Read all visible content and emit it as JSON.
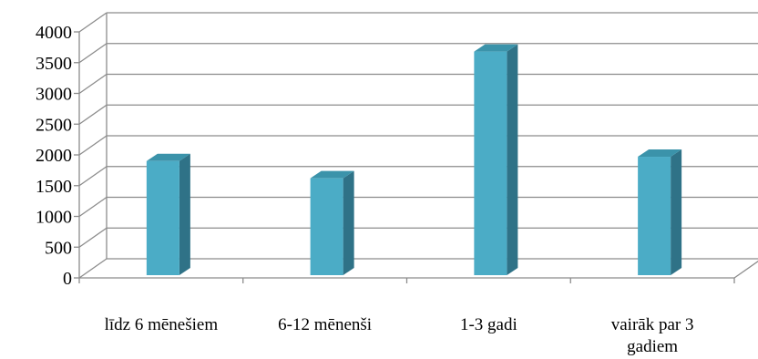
{
  "chart_data": {
    "type": "bar",
    "style": "3d-column",
    "title": "",
    "xlabel": "",
    "ylabel": "",
    "categories": [
      [
        "līdz 6 mēnešiem"
      ],
      [
        "6-12 mēnenši"
      ],
      [
        "1-3 gadi"
      ],
      [
        "vairāk par 3",
        "gadiem"
      ]
    ],
    "values": [
      1900,
      1620,
      3680,
      1970
    ],
    "ylim": [
      0,
      4000
    ],
    "yticks": [
      0,
      500,
      1000,
      1500,
      2000,
      2500,
      3000,
      3500,
      4000
    ],
    "grid": true,
    "legend": "none",
    "colors": {
      "bar_front": "#4bacc6",
      "bar_side": "#2f7287",
      "bar_top": "#3b93aa",
      "grid": "#8c8c8c",
      "axis": "#8c8c8c"
    }
  }
}
